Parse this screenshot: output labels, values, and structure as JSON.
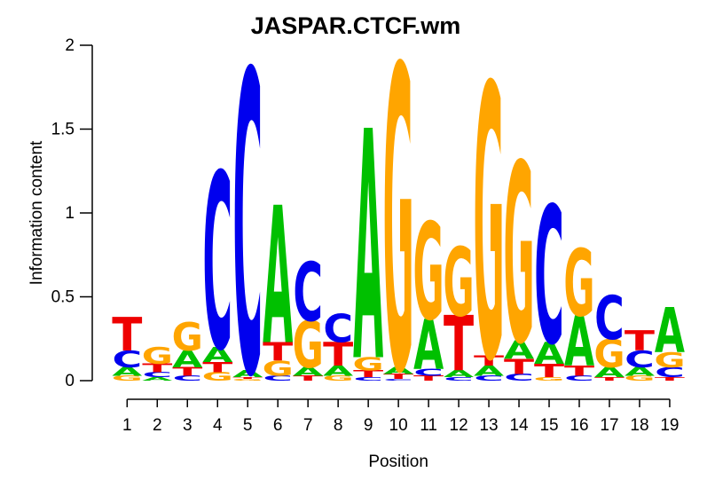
{
  "figure": {
    "title": "JASPAR.CTCF.wm"
  },
  "chart_data": {
    "type": "sequence_logo",
    "title": "JASPAR.CTCF.wm",
    "xlabel": "Position",
    "ylabel": "Information content",
    "ylim": [
      0,
      2
    ],
    "yticks": [
      "0",
      "0.5",
      "1",
      "1.5",
      "2"
    ],
    "ytick_values": [
      0,
      0.5,
      1,
      1.5,
      2
    ],
    "positions": [
      1,
      2,
      3,
      4,
      5,
      6,
      7,
      8,
      9,
      10,
      11,
      12,
      13,
      14,
      15,
      16,
      17,
      18,
      19
    ],
    "base_colors": {
      "A": "#00C000",
      "C": "#0000EE",
      "G": "#FFA500",
      "T": "#EE0000"
    },
    "stacks": [
      [
        {
          "base": "T",
          "ic": 0.2
        },
        {
          "base": "C",
          "ic": 0.1
        },
        {
          "base": "A",
          "ic": 0.05
        },
        {
          "base": "G",
          "ic": 0.03
        }
      ],
      [
        {
          "base": "G",
          "ic": 0.1
        },
        {
          "base": "T",
          "ic": 0.05
        },
        {
          "base": "C",
          "ic": 0.03
        },
        {
          "base": "A",
          "ic": 0.02
        }
      ],
      [
        {
          "base": "G",
          "ic": 0.17
        },
        {
          "base": "A",
          "ic": 0.1
        },
        {
          "base": "T",
          "ic": 0.05
        },
        {
          "base": "C",
          "ic": 0.03
        }
      ],
      [
        {
          "base": "C",
          "ic": 1.05
        },
        {
          "base": "A",
          "ic": 0.09
        },
        {
          "base": "T",
          "ic": 0.06
        },
        {
          "base": "G",
          "ic": 0.05
        }
      ],
      [
        {
          "base": "C",
          "ic": 1.8
        },
        {
          "base": "A",
          "ic": 0.04
        },
        {
          "base": "T",
          "ic": 0.01
        },
        {
          "base": "G",
          "ic": 0.01
        }
      ],
      [
        {
          "base": "A",
          "ic": 0.82
        },
        {
          "base": "T",
          "ic": 0.11
        },
        {
          "base": "G",
          "ic": 0.09
        },
        {
          "base": "C",
          "ic": 0.03
        }
      ],
      [
        {
          "base": "C",
          "ic": 0.35
        },
        {
          "base": "G",
          "ic": 0.28
        },
        {
          "base": "A",
          "ic": 0.05
        },
        {
          "base": "T",
          "ic": 0.03
        }
      ],
      [
        {
          "base": "C",
          "ic": 0.17
        },
        {
          "base": "T",
          "ic": 0.14
        },
        {
          "base": "A",
          "ic": 0.06
        },
        {
          "base": "G",
          "ic": 0.03
        }
      ],
      [
        {
          "base": "A",
          "ic": 1.37
        },
        {
          "base": "G",
          "ic": 0.08
        },
        {
          "base": "T",
          "ic": 0.04
        },
        {
          "base": "C",
          "ic": 0.02
        }
      ],
      [
        {
          "base": "G",
          "ic": 1.81
        },
        {
          "base": "A",
          "ic": 0.04
        },
        {
          "base": "T",
          "ic": 0.03
        },
        {
          "base": "C",
          "ic": 0.01
        }
      ],
      [
        {
          "base": "G",
          "ic": 0.58
        },
        {
          "base": "A",
          "ic": 0.3
        },
        {
          "base": "C",
          "ic": 0.04
        },
        {
          "base": "T",
          "ic": 0.03
        }
      ],
      [
        {
          "base": "G",
          "ic": 0.41
        },
        {
          "base": "T",
          "ic": 0.33
        },
        {
          "base": "A",
          "ic": 0.04
        },
        {
          "base": "C",
          "ic": 0.02
        }
      ],
      [
        {
          "base": "G",
          "ic": 1.63
        },
        {
          "base": "T",
          "ic": 0.06
        },
        {
          "base": "A",
          "ic": 0.06
        },
        {
          "base": "C",
          "ic": 0.03
        }
      ],
      [
        {
          "base": "G",
          "ic": 1.07
        },
        {
          "base": "A",
          "ic": 0.11
        },
        {
          "base": "T",
          "ic": 0.09
        },
        {
          "base": "C",
          "ic": 0.04
        }
      ],
      [
        {
          "base": "C",
          "ic": 0.82
        },
        {
          "base": "A",
          "ic": 0.13
        },
        {
          "base": "T",
          "ic": 0.08
        },
        {
          "base": "G",
          "ic": 0.02
        }
      ],
      [
        {
          "base": "G",
          "ic": 0.4
        },
        {
          "base": "A",
          "ic": 0.3
        },
        {
          "base": "T",
          "ic": 0.06
        },
        {
          "base": "C",
          "ic": 0.03
        }
      ],
      [
        {
          "base": "C",
          "ic": 0.26
        },
        {
          "base": "G",
          "ic": 0.17
        },
        {
          "base": "A",
          "ic": 0.06
        },
        {
          "base": "T",
          "ic": 0.02
        }
      ],
      [
        {
          "base": "T",
          "ic": 0.12
        },
        {
          "base": "C",
          "ic": 0.1
        },
        {
          "base": "A",
          "ic": 0.05
        },
        {
          "base": "G",
          "ic": 0.03
        }
      ],
      [
        {
          "base": "A",
          "ic": 0.27
        },
        {
          "base": "G",
          "ic": 0.09
        },
        {
          "base": "C",
          "ic": 0.06
        },
        {
          "base": "T",
          "ic": 0.02
        }
      ]
    ]
  }
}
